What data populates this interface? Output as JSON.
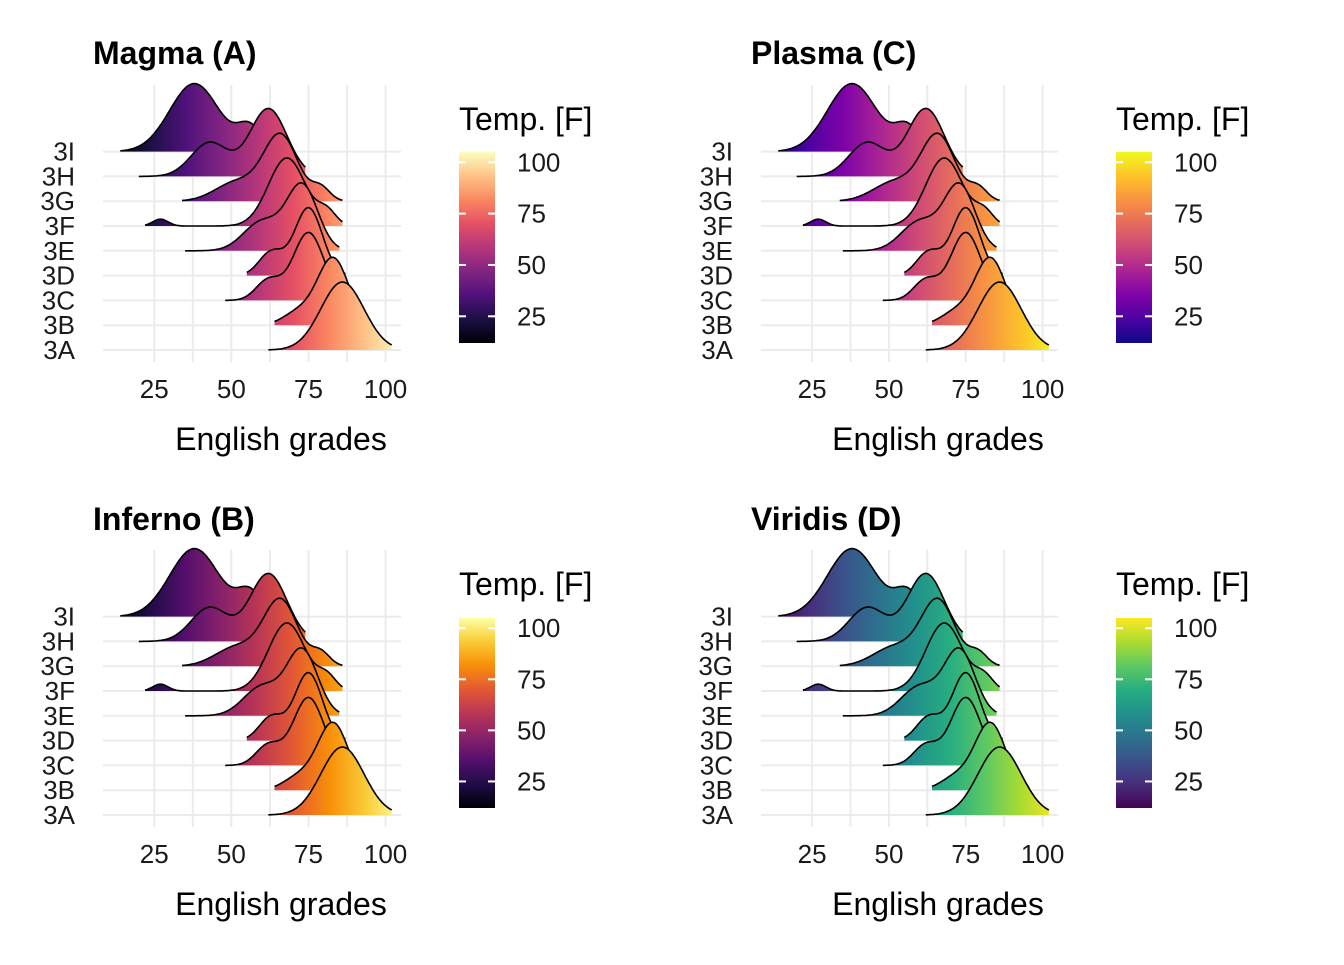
{
  "panels": [
    {
      "id": "magma",
      "title": "Magma (A)",
      "colors": [
        "#000004",
        "#1c1044",
        "#4f127b",
        "#812581",
        "#b5367a",
        "#e55064",
        "#fb8761",
        "#fec287",
        "#fcfdbf"
      ]
    },
    {
      "id": "plasma",
      "title": "Plasma (C)",
      "colors": [
        "#0d0887",
        "#4c02a1",
        "#7e03a8",
        "#a92395",
        "#cc4778",
        "#e56b5d",
        "#f89441",
        "#fdc328",
        "#f0f921"
      ]
    },
    {
      "id": "inferno",
      "title": "Inferno (B)",
      "colors": [
        "#000004",
        "#1f0c48",
        "#550f6d",
        "#88226a",
        "#ba3655",
        "#e35933",
        "#f98e09",
        "#f9cb35",
        "#fcffa4"
      ]
    },
    {
      "id": "viridis",
      "title": "Viridis (D)",
      "colors": [
        "#440154",
        "#472d7b",
        "#3b528b",
        "#2c728e",
        "#21918c",
        "#28ae80",
        "#5ec962",
        "#addc30",
        "#fde725"
      ]
    }
  ],
  "chart_data": {
    "type": "ridgeline",
    "xlabel": "English grades",
    "ylabel": "",
    "x_ticks": [
      25,
      50,
      75,
      100
    ],
    "xlim": [
      10,
      105
    ],
    "legend": {
      "title": "Temp. [F]",
      "ticks": [
        25,
        50,
        75,
        100
      ],
      "range": [
        12,
        105
      ],
      "position": "right"
    },
    "categories": [
      "3A",
      "3B",
      "3C",
      "3D",
      "3E",
      "3F",
      "3G",
      "3H",
      "3I"
    ],
    "series": [
      {
        "name": "3A",
        "range": [
          62,
          102
        ],
        "peaks": [
          {
            "mu": 86,
            "sd": 7,
            "h": 1.0
          }
        ]
      },
      {
        "name": "3B",
        "range": [
          64,
          92
        ],
        "peaks": [
          {
            "mu": 83,
            "sd": 5,
            "h": 1.0
          },
          {
            "mu": 72,
            "sd": 5,
            "h": 0.2
          }
        ]
      },
      {
        "name": "3C",
        "range": [
          48,
          90
        ],
        "peaks": [
          {
            "mu": 75,
            "sd": 5,
            "h": 1.0
          },
          {
            "mu": 62,
            "sd": 4,
            "h": 0.3
          }
        ]
      },
      {
        "name": "3D",
        "range": [
          55,
          87
        ],
        "peaks": [
          {
            "mu": 75,
            "sd": 4.5,
            "h": 1.0
          },
          {
            "mu": 63,
            "sd": 4,
            "h": 0.35
          }
        ]
      },
      {
        "name": "3E",
        "range": [
          35,
          85
        ],
        "peaks": [
          {
            "mu": 73,
            "sd": 5,
            "h": 1.0
          },
          {
            "mu": 60,
            "sd": 6,
            "h": 0.45
          }
        ]
      },
      {
        "name": "3F",
        "range": [
          22,
          86
        ],
        "peaks": [
          {
            "mu": 68,
            "sd": 6,
            "h": 1.0
          },
          {
            "mu": 27,
            "sd": 2.5,
            "h": 0.1
          },
          {
            "mu": 81,
            "sd": 3,
            "h": 0.2
          }
        ]
      },
      {
        "name": "3G",
        "range": [
          34,
          86
        ],
        "peaks": [
          {
            "mu": 66,
            "sd": 5.5,
            "h": 1.0
          },
          {
            "mu": 52,
            "sd": 7,
            "h": 0.3
          },
          {
            "mu": 79,
            "sd": 3,
            "h": 0.2
          }
        ]
      },
      {
        "name": "3H",
        "range": [
          20,
          74
        ],
        "peaks": [
          {
            "mu": 62,
            "sd": 6,
            "h": 1.0
          },
          {
            "mu": 43,
            "sd": 6,
            "h": 0.5
          }
        ]
      },
      {
        "name": "3I",
        "range": [
          14,
          66
        ],
        "peaks": [
          {
            "mu": 38,
            "sd": 8,
            "h": 1.0
          },
          {
            "mu": 56,
            "sd": 4,
            "h": 0.35
          }
        ]
      }
    ]
  }
}
